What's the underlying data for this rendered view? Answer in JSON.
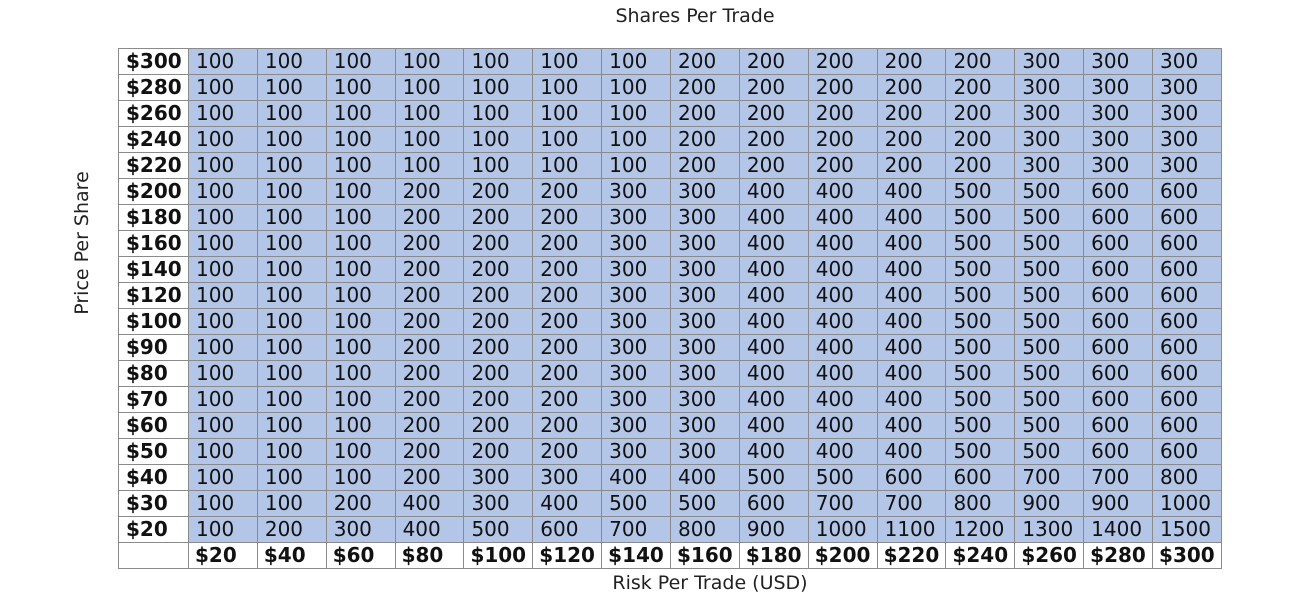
{
  "title": "Shares Per Trade",
  "y_label": "Price Per Share",
  "x_label": "Risk Per Trade (USD)",
  "table": {
    "columns": [
      "$20",
      "$40",
      "$60",
      "$80",
      "$100",
      "$120",
      "$140",
      "$160",
      "$180",
      "$200",
      "$220",
      "$240",
      "$260",
      "$280",
      "$300"
    ],
    "rows": [
      {
        "label": "$300",
        "cells": [
          100,
          100,
          100,
          100,
          100,
          100,
          100,
          200,
          200,
          200,
          200,
          200,
          300,
          300,
          300
        ]
      },
      {
        "label": "$280",
        "cells": [
          100,
          100,
          100,
          100,
          100,
          100,
          100,
          200,
          200,
          200,
          200,
          200,
          300,
          300,
          300
        ]
      },
      {
        "label": "$260",
        "cells": [
          100,
          100,
          100,
          100,
          100,
          100,
          100,
          200,
          200,
          200,
          200,
          200,
          300,
          300,
          300
        ]
      },
      {
        "label": "$240",
        "cells": [
          100,
          100,
          100,
          100,
          100,
          100,
          100,
          200,
          200,
          200,
          200,
          200,
          300,
          300,
          300
        ]
      },
      {
        "label": "$220",
        "cells": [
          100,
          100,
          100,
          100,
          100,
          100,
          100,
          200,
          200,
          200,
          200,
          200,
          300,
          300,
          300
        ]
      },
      {
        "label": "$200",
        "cells": [
          100,
          100,
          100,
          200,
          200,
          200,
          300,
          300,
          400,
          400,
          400,
          500,
          500,
          600,
          600
        ]
      },
      {
        "label": "$180",
        "cells": [
          100,
          100,
          100,
          200,
          200,
          200,
          300,
          300,
          400,
          400,
          400,
          500,
          500,
          600,
          600
        ]
      },
      {
        "label": "$160",
        "cells": [
          100,
          100,
          100,
          200,
          200,
          200,
          300,
          300,
          400,
          400,
          400,
          500,
          500,
          600,
          600
        ]
      },
      {
        "label": "$140",
        "cells": [
          100,
          100,
          100,
          200,
          200,
          200,
          300,
          300,
          400,
          400,
          400,
          500,
          500,
          600,
          600
        ]
      },
      {
        "label": "$120",
        "cells": [
          100,
          100,
          100,
          200,
          200,
          200,
          300,
          300,
          400,
          400,
          400,
          500,
          500,
          600,
          600
        ]
      },
      {
        "label": "$100",
        "cells": [
          100,
          100,
          100,
          200,
          200,
          200,
          300,
          300,
          400,
          400,
          400,
          500,
          500,
          600,
          600
        ]
      },
      {
        "label": "$90",
        "cells": [
          100,
          100,
          100,
          200,
          200,
          200,
          300,
          300,
          400,
          400,
          400,
          500,
          500,
          600,
          600
        ]
      },
      {
        "label": "$80",
        "cells": [
          100,
          100,
          100,
          200,
          200,
          200,
          300,
          300,
          400,
          400,
          400,
          500,
          500,
          600,
          600
        ]
      },
      {
        "label": "$70",
        "cells": [
          100,
          100,
          100,
          200,
          200,
          200,
          300,
          300,
          400,
          400,
          400,
          500,
          500,
          600,
          600
        ]
      },
      {
        "label": "$60",
        "cells": [
          100,
          100,
          100,
          200,
          200,
          200,
          300,
          300,
          400,
          400,
          400,
          500,
          500,
          600,
          600
        ]
      },
      {
        "label": "$50",
        "cells": [
          100,
          100,
          100,
          200,
          200,
          200,
          300,
          300,
          400,
          400,
          400,
          500,
          500,
          600,
          600
        ]
      },
      {
        "label": "$40",
        "cells": [
          100,
          100,
          100,
          200,
          300,
          300,
          400,
          400,
          500,
          500,
          600,
          600,
          700,
          700,
          800
        ]
      },
      {
        "label": "$30",
        "cells": [
          100,
          100,
          200,
          400,
          300,
          400,
          500,
          500,
          600,
          700,
          700,
          800,
          900,
          900,
          1000
        ]
      },
      {
        "label": "$20",
        "cells": [
          100,
          200,
          300,
          400,
          500,
          600,
          700,
          800,
          900,
          1000,
          1100,
          1200,
          1300,
          1400,
          1500
        ]
      }
    ]
  }
}
